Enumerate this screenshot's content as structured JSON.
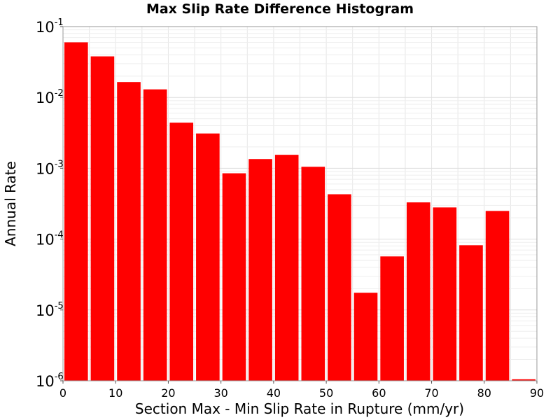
{
  "chart_data": {
    "type": "bar",
    "title": "Max Slip Rate Difference Histogram",
    "xlabel": "Section Max - Min Slip Rate in Rupture (mm/yr)",
    "ylabel": "Annual Rate",
    "x": [
      2.5,
      7.5,
      12.5,
      17.5,
      22.5,
      27.5,
      32.5,
      37.5,
      42.5,
      47.5,
      52.5,
      57.5,
      62.5,
      67.5,
      72.5,
      77.5,
      82.5,
      87.5
    ],
    "bin_width": 5,
    "values": [
      0.06,
      0.038,
      0.0165,
      0.013,
      0.0044,
      0.0031,
      0.00085,
      0.00135,
      0.00155,
      0.00105,
      0.00043,
      1.75e-05,
      5.7e-05,
      0.00033,
      0.00028,
      8.2e-05,
      0.00025,
      1.05e-06
    ],
    "xlim": [
      0,
      90
    ],
    "ylim": [
      1e-06,
      0.1
    ],
    "yscale": "log",
    "x_ticks": [
      "0",
      "10",
      "20",
      "30",
      "40",
      "50",
      "60",
      "70",
      "80",
      "90"
    ],
    "y_ticks": [
      {
        "base": "10",
        "exp": "-6"
      },
      {
        "base": "10",
        "exp": "-5"
      },
      {
        "base": "10",
        "exp": "-4"
      },
      {
        "base": "10",
        "exp": "-3"
      },
      {
        "base": "10",
        "exp": "-2"
      },
      {
        "base": "10",
        "exp": "-1"
      }
    ],
    "bar_color": "#ff0000",
    "grid": true,
    "legend": false
  }
}
